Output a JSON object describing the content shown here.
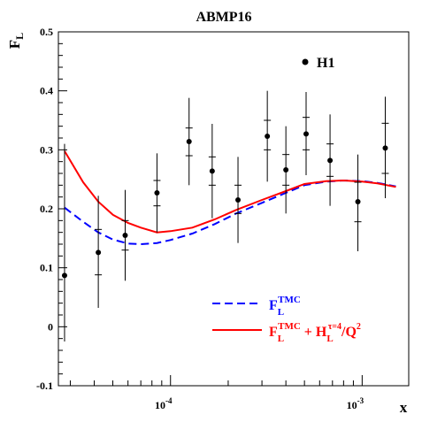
{
  "chart_data": {
    "type": "scatter",
    "title": "ABMP16",
    "ylabel": "F",
    "ylabel_sub": "L",
    "xlabel": "x",
    "x_scale": "log",
    "xlim": [
      2.6e-05,
      0.00175
    ],
    "ylim": [
      -0.1,
      0.5
    ],
    "y_ticks": [
      -0.1,
      0,
      0.1,
      0.2,
      0.3,
      0.4,
      0.5
    ],
    "y_tick_labels": [
      "-0.1",
      "0",
      "0.1",
      "0.2",
      "0.3",
      "0.4",
      "0.5"
    ],
    "x_major_ticks": [
      0.0001,
      0.001
    ],
    "x_tick_labels": [
      {
        "base": "10",
        "exp": "-4"
      },
      {
        "base": "10",
        "exp": "-3"
      }
    ],
    "x_minor_ticks": [
      3e-05,
      4e-05,
      5e-05,
      6e-05,
      7e-05,
      8e-05,
      9e-05,
      0.0002,
      0.0003,
      0.0004,
      0.0005,
      0.0006,
      0.0007,
      0.0008,
      0.0009
    ],
    "grid": false,
    "legend_position": "lower-right",
    "data_series": {
      "name": "H1",
      "color": "#000000",
      "points": [
        {
          "x": 2.8e-05,
          "y": 0.087,
          "y_stat": [
            0.087,
            0.087
          ],
          "y_tot": [
            -0.025,
            0.31
          ]
        },
        {
          "x": 4.2e-05,
          "y": 0.126,
          "y_stat": [
            0.088,
            0.165
          ],
          "y_tot": [
            0.032,
            0.222
          ]
        },
        {
          "x": 5.8e-05,
          "y": 0.155,
          "y_stat": [
            0.13,
            0.18
          ],
          "y_tot": [
            0.078,
            0.232
          ]
        },
        {
          "x": 8.5e-05,
          "y": 0.227,
          "y_stat": [
            0.205,
            0.248
          ],
          "y_tot": [
            0.16,
            0.294
          ]
        },
        {
          "x": 0.000125,
          "y": 0.314,
          "y_stat": [
            0.29,
            0.337
          ],
          "y_tot": [
            0.24,
            0.388
          ]
        },
        {
          "x": 0.000165,
          "y": 0.264,
          "y_stat": [
            0.24,
            0.288
          ],
          "y_tot": [
            0.184,
            0.344
          ]
        },
        {
          "x": 0.000225,
          "y": 0.215,
          "y_stat": [
            0.192,
            0.24
          ],
          "y_tot": [
            0.142,
            0.288
          ]
        },
        {
          "x": 0.00032,
          "y": 0.323,
          "y_stat": [
            0.3,
            0.35
          ],
          "y_tot": [
            0.246,
            0.4
          ]
        },
        {
          "x": 0.0004,
          "y": 0.266,
          "y_stat": [
            0.24,
            0.292
          ],
          "y_tot": [
            0.192,
            0.34
          ]
        },
        {
          "x": 0.00051,
          "y": 0.327,
          "y_stat": [
            0.3,
            0.355
          ],
          "y_tot": [
            0.257,
            0.398
          ]
        },
        {
          "x": 0.00068,
          "y": 0.282,
          "y_stat": [
            0.255,
            0.31
          ],
          "y_tot": [
            0.205,
            0.36
          ]
        },
        {
          "x": 0.00095,
          "y": 0.212,
          "y_stat": [
            0.178,
            0.245
          ],
          "y_tot": [
            0.128,
            0.292
          ]
        },
        {
          "x": 0.00132,
          "y": 0.303,
          "y_stat": [
            0.26,
            0.345
          ],
          "y_tot": [
            0.218,
            0.39
          ]
        }
      ]
    },
    "curves": [
      {
        "id": "tmc",
        "label_main": "F",
        "label_sub": "L",
        "label_sup": "TMC",
        "color": "#0000ff",
        "dash": "dashed",
        "x": [
          2.8e-05,
          3.5e-05,
          4.2e-05,
          5e-05,
          6e-05,
          7e-05,
          8.5e-05,
          0.0001,
          0.00013,
          0.00017,
          0.00022,
          0.0003,
          0.0004,
          0.0005,
          0.00065,
          0.0008,
          0.001,
          0.0012,
          0.0015
        ],
        "y": [
          0.202,
          0.178,
          0.16,
          0.148,
          0.141,
          0.14,
          0.142,
          0.147,
          0.158,
          0.174,
          0.192,
          0.21,
          0.227,
          0.24,
          0.246,
          0.248,
          0.247,
          0.244,
          0.238
        ]
      },
      {
        "id": "tmc-ht",
        "label_main": "F",
        "label_sub": "L",
        "label_sup": "TMC",
        "label_part2_main": " + H",
        "label_part2_sub": "L",
        "label_part2_sup": "τ=4",
        "label_part3": "/Q",
        "label_part3_sup": "2",
        "color": "#ff0000",
        "dash": "solid",
        "x": [
          2.8e-05,
          3.5e-05,
          4.2e-05,
          5e-05,
          6e-05,
          7e-05,
          8.5e-05,
          0.0001,
          0.00013,
          0.00017,
          0.00022,
          0.0003,
          0.0004,
          0.0005,
          0.00065,
          0.0008,
          0.001,
          0.0012,
          0.0015
        ],
        "y": [
          0.298,
          0.245,
          0.212,
          0.19,
          0.176,
          0.168,
          0.16,
          0.162,
          0.168,
          0.182,
          0.198,
          0.215,
          0.23,
          0.242,
          0.247,
          0.248,
          0.246,
          0.243,
          0.237
        ]
      }
    ]
  }
}
